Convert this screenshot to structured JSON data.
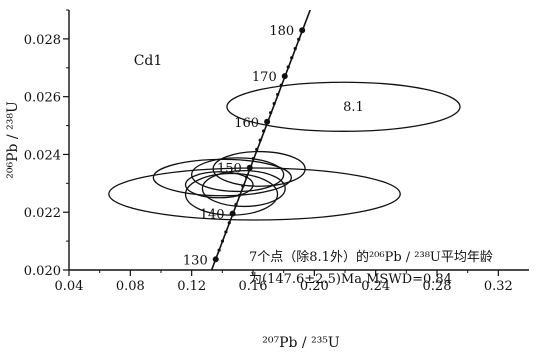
{
  "chart_data": {
    "type": "scatter",
    "subtype": "concordia",
    "sample_label": "Cd1",
    "xlabel": "²⁰⁷Pb / ²³⁵U",
    "ylabel": "²⁰⁶Pb / ²³⁸U",
    "xlim": [
      0.04,
      0.34
    ],
    "ylim": [
      0.02,
      0.029
    ],
    "xticks": [
      0.04,
      0.08,
      0.12,
      0.16,
      0.2,
      0.24,
      0.28,
      0.32
    ],
    "xtick_labels": [
      "0.04",
      "0.08",
      "0.12",
      "0.16",
      "0.20",
      "0.24",
      "0.28",
      "0.32"
    ],
    "yticks": [
      0.02,
      0.022,
      0.024,
      0.026,
      0.028
    ],
    "ytick_labels": [
      "0.020",
      "0.022",
      "0.024",
      "0.026",
      "0.028"
    ],
    "concordia": {
      "ages": [
        130,
        140,
        150,
        160,
        170,
        180
      ],
      "age_labels": [
        "130",
        "140",
        "150",
        "160",
        "170",
        "180"
      ],
      "points": [
        {
          "age": 130,
          "x": 0.1357,
          "y": 0.02037
        },
        {
          "age": 140,
          "x": 0.1467,
          "y": 0.02195
        },
        {
          "age": 150,
          "x": 0.1579,
          "y": 0.02354
        },
        {
          "age": 160,
          "x": 0.1692,
          "y": 0.02513
        },
        {
          "age": 170,
          "x": 0.1807,
          "y": 0.02671
        },
        {
          "age": 180,
          "x": 0.1921,
          "y": 0.0283
        }
      ],
      "line_start": {
        "x": 0.133,
        "y": 0.02
      },
      "line_end": {
        "x": 0.198,
        "y": 0.0291
      }
    },
    "ellipses": [
      {
        "cx": 0.219,
        "cy": 0.02565,
        "rx": 0.076,
        "ry": 0.00085,
        "label": "8.1"
      },
      {
        "cx": 0.161,
        "cy": 0.02263,
        "rx": 0.095,
        "ry": 0.0009,
        "label": ""
      },
      {
        "cx": 0.14,
        "cy": 0.0232,
        "rx": 0.045,
        "ry": 0.00063,
        "label": ""
      },
      {
        "cx": 0.15,
        "cy": 0.0233,
        "rx": 0.03,
        "ry": 0.00058,
        "label": ""
      },
      {
        "cx": 0.164,
        "cy": 0.0235,
        "rx": 0.03,
        "ry": 0.0006,
        "label": ""
      },
      {
        "cx": 0.146,
        "cy": 0.02262,
        "rx": 0.03,
        "ry": 0.00072,
        "label": ""
      },
      {
        "cx": 0.154,
        "cy": 0.02282,
        "rx": 0.027,
        "ry": 0.00062,
        "label": ""
      },
      {
        "cx": 0.138,
        "cy": 0.02295,
        "rx": 0.022,
        "ry": 0.00045,
        "label": ""
      }
    ],
    "annotation_line1": "7个点（除8.1外）的²⁰⁶Pb / ²³⁸U平均年龄",
    "annotation_line2": "为(147.6±2.5)Ma MSWD=0.84"
  }
}
